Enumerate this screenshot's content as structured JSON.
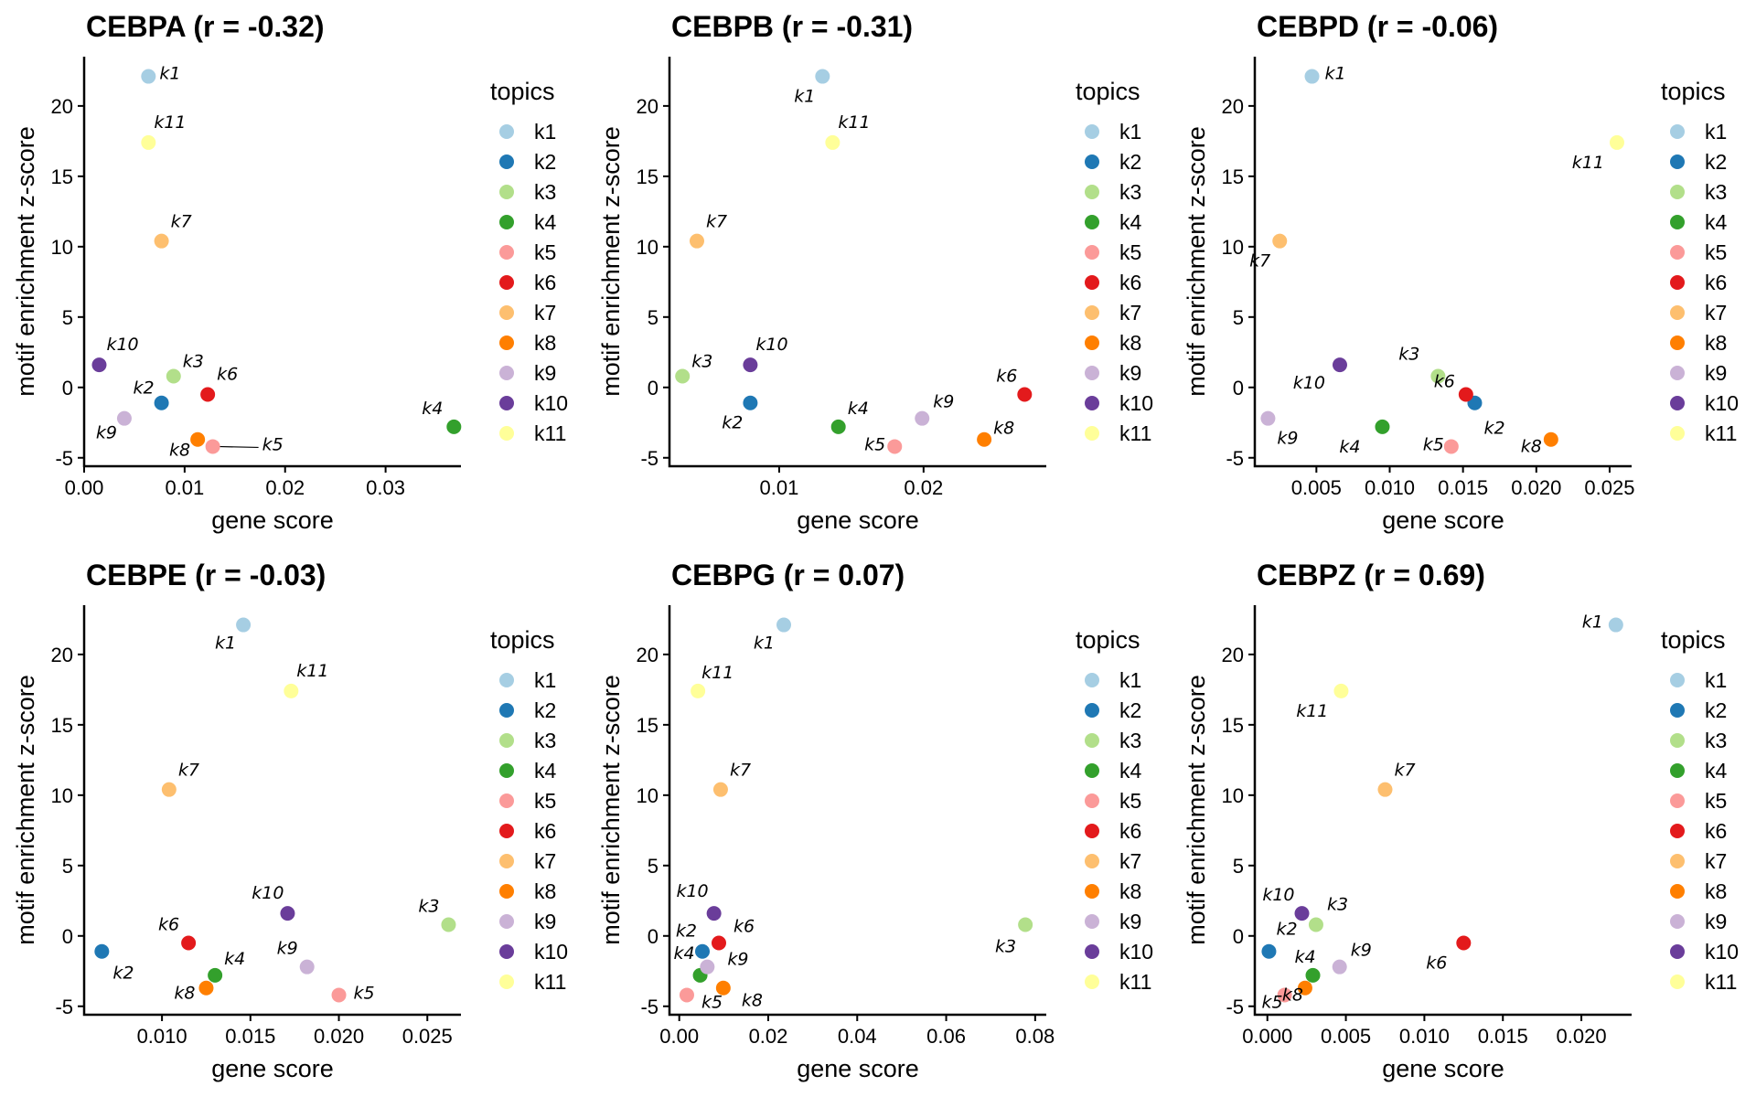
{
  "legend": {
    "title": "topics",
    "items": [
      "k1",
      "k2",
      "k3",
      "k4",
      "k5",
      "k6",
      "k7",
      "k8",
      "k9",
      "k10",
      "k11"
    ]
  },
  "colors": {
    "k1": "#A6CEE3",
    "k2": "#1F78B4",
    "k3": "#B2DF8A",
    "k4": "#33A02C",
    "k5": "#FB9A99",
    "k6": "#E31A1C",
    "k7": "#FDBF6F",
    "k8": "#FF7F00",
    "k9": "#CAB2D6",
    "k10": "#6A3D9A",
    "k11": "#FFFF99"
  },
  "chart_data": [
    {
      "type": "scatter",
      "title": "CEBPA (r = -0.32)",
      "xlabel": "gene score",
      "ylabel": "motif enrichment z-score",
      "xlim": [
        0.0,
        0.0375
      ],
      "ylim": [
        -5.6,
        23.5
      ],
      "xticks": [
        0.0,
        0.01,
        0.02,
        0.03
      ],
      "xtick_labels": [
        "0.00",
        "0.01",
        "0.02",
        "0.03"
      ],
      "yticks": [
        -5,
        0,
        5,
        10,
        15,
        20
      ],
      "ytick_labels": [
        "-5",
        "0",
        "5",
        "10",
        "15",
        "20"
      ],
      "points": [
        {
          "topic": "k1",
          "x": 0.0064,
          "y": 22.1
        },
        {
          "topic": "k2",
          "x": 0.0077,
          "y": -1.1
        },
        {
          "topic": "k3",
          "x": 0.0089,
          "y": 0.8
        },
        {
          "topic": "k4",
          "x": 0.0368,
          "y": -2.8
        },
        {
          "topic": "k5",
          "x": 0.0128,
          "y": -4.2
        },
        {
          "topic": "k6",
          "x": 0.0123,
          "y": -0.5
        },
        {
          "topic": "k7",
          "x": 0.0077,
          "y": 10.4
        },
        {
          "topic": "k8",
          "x": 0.0113,
          "y": -3.7
        },
        {
          "topic": "k9",
          "x": 0.004,
          "y": -2.2
        },
        {
          "topic": "k10",
          "x": 0.0015,
          "y": 1.6
        },
        {
          "topic": "k11",
          "x": 0.0064,
          "y": 17.4
        }
      ]
    },
    {
      "type": "scatter",
      "title": "CEBPB (r = -0.31)",
      "xlabel": "gene score",
      "ylabel": "motif enrichment z-score",
      "xlim": [
        0.0024,
        0.0285
      ],
      "ylim": [
        -5.6,
        23.5
      ],
      "xticks": [
        0.01,
        0.02
      ],
      "xtick_labels": [
        "0.01",
        "0.02"
      ],
      "yticks": [
        -5,
        0,
        5,
        10,
        15,
        20
      ],
      "ytick_labels": [
        "-5",
        "0",
        "5",
        "10",
        "15",
        "20"
      ],
      "points": [
        {
          "topic": "k1",
          "x": 0.013,
          "y": 22.1
        },
        {
          "topic": "k2",
          "x": 0.008,
          "y": -1.1
        },
        {
          "topic": "k3",
          "x": 0.0033,
          "y": 0.8
        },
        {
          "topic": "k4",
          "x": 0.0141,
          "y": -2.8
        },
        {
          "topic": "k5",
          "x": 0.018,
          "y": -4.2
        },
        {
          "topic": "k6",
          "x": 0.027,
          "y": -0.5
        },
        {
          "topic": "k7",
          "x": 0.0043,
          "y": 10.4
        },
        {
          "topic": "k8",
          "x": 0.0242,
          "y": -3.7
        },
        {
          "topic": "k9",
          "x": 0.0199,
          "y": -2.2
        },
        {
          "topic": "k10",
          "x": 0.008,
          "y": 1.6
        },
        {
          "topic": "k11",
          "x": 0.0137,
          "y": 17.4
        }
      ]
    },
    {
      "type": "scatter",
      "title": "CEBPD (r = -0.06)",
      "xlabel": "gene score",
      "ylabel": "motif enrichment z-score",
      "xlim": [
        0.0008,
        0.0265
      ],
      "ylim": [
        -5.6,
        23.5
      ],
      "xticks": [
        0.005,
        0.01,
        0.015,
        0.02,
        0.025
      ],
      "xtick_labels": [
        "0.005",
        "0.010",
        "0.015",
        "0.020",
        "0.025"
      ],
      "yticks": [
        -5,
        0,
        5,
        10,
        15,
        20
      ],
      "ytick_labels": [
        "-5",
        "0",
        "5",
        "10",
        "15",
        "20"
      ],
      "points": [
        {
          "topic": "k1",
          "x": 0.0047,
          "y": 22.1
        },
        {
          "topic": "k2",
          "x": 0.0158,
          "y": -1.1
        },
        {
          "topic": "k3",
          "x": 0.0133,
          "y": 0.8
        },
        {
          "topic": "k4",
          "x": 0.0095,
          "y": -2.8
        },
        {
          "topic": "k5",
          "x": 0.0142,
          "y": -4.2
        },
        {
          "topic": "k6",
          "x": 0.0152,
          "y": -0.5
        },
        {
          "topic": "k7",
          "x": 0.0025,
          "y": 10.4
        },
        {
          "topic": "k8",
          "x": 0.021,
          "y": -3.7
        },
        {
          "topic": "k9",
          "x": 0.0017,
          "y": -2.2
        },
        {
          "topic": "k10",
          "x": 0.0066,
          "y": 1.6
        },
        {
          "topic": "k11",
          "x": 0.0255,
          "y": 17.4
        }
      ]
    },
    {
      "type": "scatter",
      "title": "CEBPE (r = -0.03)",
      "xlabel": "gene score",
      "ylabel": "motif enrichment z-score",
      "xlim": [
        0.0056,
        0.0269
      ],
      "ylim": [
        -5.6,
        23.5
      ],
      "xticks": [
        0.01,
        0.015,
        0.02,
        0.025
      ],
      "xtick_labels": [
        "0.010",
        "0.015",
        "0.020",
        "0.025"
      ],
      "yticks": [
        -5,
        0,
        5,
        10,
        15,
        20
      ],
      "ytick_labels": [
        "-5",
        "0",
        "5",
        "10",
        "15",
        "20"
      ],
      "points": [
        {
          "topic": "k1",
          "x": 0.0146,
          "y": 22.1
        },
        {
          "topic": "k2",
          "x": 0.0066,
          "y": -1.1
        },
        {
          "topic": "k3",
          "x": 0.0262,
          "y": 0.8
        },
        {
          "topic": "k4",
          "x": 0.013,
          "y": -2.8
        },
        {
          "topic": "k5",
          "x": 0.02,
          "y": -4.2
        },
        {
          "topic": "k6",
          "x": 0.0115,
          "y": -0.5
        },
        {
          "topic": "k7",
          "x": 0.0104,
          "y": 10.4
        },
        {
          "topic": "k8",
          "x": 0.0125,
          "y": -3.7
        },
        {
          "topic": "k9",
          "x": 0.0182,
          "y": -2.2
        },
        {
          "topic": "k10",
          "x": 0.0171,
          "y": 1.6
        },
        {
          "topic": "k11",
          "x": 0.0173,
          "y": 17.4
        }
      ]
    },
    {
      "type": "scatter",
      "title": "CEBPG (r = 0.07)",
      "xlabel": "gene score",
      "ylabel": "motif enrichment z-score",
      "xlim": [
        -0.0022,
        0.0825
      ],
      "ylim": [
        -5.6,
        23.5
      ],
      "xticks": [
        0.0,
        0.02,
        0.04,
        0.06,
        0.08
      ],
      "xtick_labels": [
        "0.00",
        "0.02",
        "0.04",
        "0.06",
        "0.08"
      ],
      "yticks": [
        -5,
        0,
        5,
        10,
        15,
        20
      ],
      "ytick_labels": [
        "-5",
        "0",
        "5",
        "10",
        "15",
        "20"
      ],
      "points": [
        {
          "topic": "k1",
          "x": 0.0235,
          "y": 22.1
        },
        {
          "topic": "k2",
          "x": 0.0052,
          "y": -1.1
        },
        {
          "topic": "k3",
          "x": 0.0778,
          "y": 0.8
        },
        {
          "topic": "k4",
          "x": 0.0047,
          "y": -2.8
        },
        {
          "topic": "k5",
          "x": 0.0017,
          "y": -4.2
        },
        {
          "topic": "k6",
          "x": 0.0089,
          "y": -0.5
        },
        {
          "topic": "k7",
          "x": 0.0093,
          "y": 10.4
        },
        {
          "topic": "k8",
          "x": 0.0099,
          "y": -3.7
        },
        {
          "topic": "k9",
          "x": 0.0063,
          "y": -2.2
        },
        {
          "topic": "k10",
          "x": 0.0078,
          "y": 1.6
        },
        {
          "topic": "k11",
          "x": 0.0042,
          "y": 17.4
        }
      ]
    },
    {
      "type": "scatter",
      "title": "CEBPZ (r = 0.69)",
      "xlabel": "gene score",
      "ylabel": "motif enrichment z-score",
      "xlim": [
        -0.0008,
        0.0232
      ],
      "ylim": [
        -5.6,
        23.5
      ],
      "xticks": [
        0.0,
        0.005,
        0.01,
        0.015,
        0.02
      ],
      "xtick_labels": [
        "0.000",
        "0.005",
        "0.010",
        "0.015",
        "0.020"
      ],
      "yticks": [
        -5,
        0,
        5,
        10,
        15,
        20
      ],
      "ytick_labels": [
        "-5",
        "0",
        "5",
        "10",
        "15",
        "20"
      ],
      "points": [
        {
          "topic": "k1",
          "x": 0.0222,
          "y": 22.1
        },
        {
          "topic": "k2",
          "x": 0.0001,
          "y": -1.1
        },
        {
          "topic": "k3",
          "x": 0.0031,
          "y": 0.8
        },
        {
          "topic": "k4",
          "x": 0.0029,
          "y": -2.8
        },
        {
          "topic": "k5",
          "x": 0.0011,
          "y": -4.2
        },
        {
          "topic": "k6",
          "x": 0.0125,
          "y": -0.5
        },
        {
          "topic": "k7",
          "x": 0.0075,
          "y": 10.4
        },
        {
          "topic": "k8",
          "x": 0.0024,
          "y": -3.7
        },
        {
          "topic": "k9",
          "x": 0.0046,
          "y": -2.2
        },
        {
          "topic": "k10",
          "x": 0.0022,
          "y": 1.6
        },
        {
          "topic": "k11",
          "x": 0.0047,
          "y": 17.4
        }
      ]
    }
  ]
}
